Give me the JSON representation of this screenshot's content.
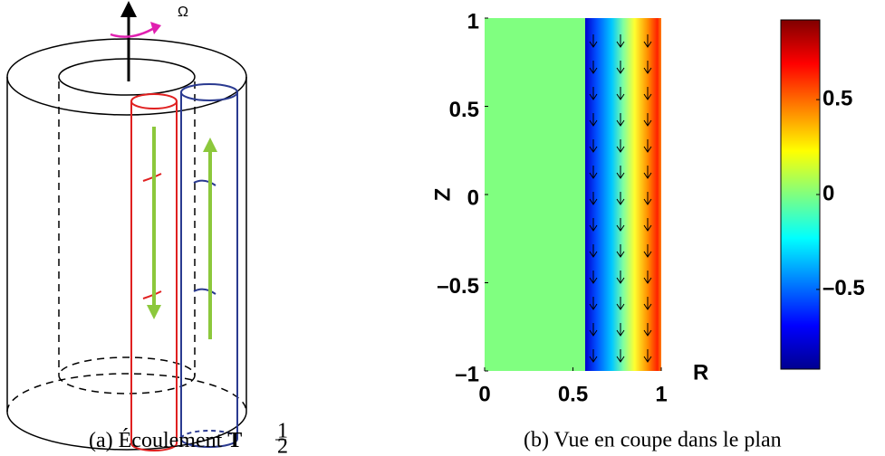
{
  "panels": [
    {
      "omega": "Ω",
      "caption": {
        "label": "(a) Écoulement",
        "symbol": "T",
        "numerator": "1",
        "denominator": "2"
      }
    },
    {
      "chart_data": {
        "type": "heatmap",
        "xlabel": "R",
        "ylabel": "Z",
        "xlim": [
          0,
          1
        ],
        "ylim": [
          -1,
          1
        ],
        "xticks": [
          0,
          0.5,
          1
        ],
        "yticks": [
          {
            "value": -1,
            "label": "–1"
          },
          {
            "value": -0.5,
            "label": "–0.5"
          },
          0,
          0.5,
          1
        ],
        "clim": [
          -0.92,
          0.92
        ],
        "cticks": [
          {
            "value": -0.5,
            "label": "–0.5"
          },
          0,
          0.5
        ]
      },
      "caption": "(b) Vue en coupe dans le plan"
    }
  ]
}
